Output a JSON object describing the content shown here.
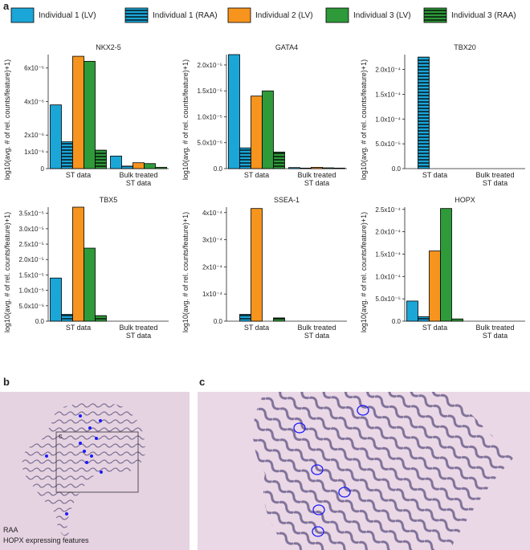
{
  "panel_label": "a",
  "legend": [
    {
      "name": "Individual 1 (LV)",
      "color": "#1ba6d8",
      "hatched": false
    },
    {
      "name": "Individual 1 (RAA)",
      "color": "#1ba6d8",
      "hatched": true
    },
    {
      "name": "Individual 2 (LV)",
      "color": "#f7941d",
      "hatched": false
    },
    {
      "name": "Individual 3 (LV)",
      "color": "#2e9a3a",
      "hatched": false
    },
    {
      "name": "Individual 3 (RAA)",
      "color": "#2e9a3a",
      "hatched": true
    }
  ],
  "chart_data": [
    {
      "type": "bar",
      "title": "NKX2-5",
      "ylabel": "log10(avg. # of rel. counts/feature)+1)",
      "categories": [
        "ST data",
        "Bulk treated ST data"
      ],
      "series": [
        {
          "values": [
            3.8e-06,
            7.5e-07
          ]
        },
        {
          "values": [
            1.6e-06,
            1.5e-07
          ]
        },
        {
          "values": [
            6.7e-06,
            3.5e-07
          ]
        },
        {
          "values": [
            6.4e-06,
            3e-07
          ]
        },
        {
          "values": [
            1.1e-06,
            8e-08
          ]
        }
      ],
      "ylim": [
        0,
        6.8e-06
      ],
      "yticks": [
        {
          "value": 0,
          "label": "0"
        },
        {
          "value": 1e-06,
          "label": "1x10⁻⁶"
        },
        {
          "value": 2e-06,
          "label": "2x10⁻⁶"
        },
        {
          "value": 4e-06,
          "label": "4x10⁻⁶"
        },
        {
          "value": 6e-06,
          "label": "6x10⁻⁶"
        }
      ]
    },
    {
      "type": "bar",
      "title": "GATA4",
      "ylabel": "log10(avg. # of rel. counts/feature)+1)",
      "categories": [
        "ST data",
        "Bulk treated ST data"
      ],
      "series": [
        {
          "values": [
            2.2e-05,
            2e-07
          ]
        },
        {
          "values": [
            4e-06,
            1e-07
          ]
        },
        {
          "values": [
            1.4e-05,
            2.5e-07
          ]
        },
        {
          "values": [
            1.5e-05,
            1.5e-07
          ]
        },
        {
          "values": [
            3.2e-06,
            1e-07
          ]
        }
      ],
      "ylim": [
        0,
        2.2e-05
      ],
      "yticks": [
        {
          "value": 0,
          "label": "0.0"
        },
        {
          "value": 5e-06,
          "label": "5.0x10⁻⁶"
        },
        {
          "value": 1e-05,
          "label": "1.0x10⁻⁵"
        },
        {
          "value": 1.5e-05,
          "label": "1.5x10⁻⁵"
        },
        {
          "value": 2e-05,
          "label": "2.0x10⁻⁵"
        }
      ]
    },
    {
      "type": "bar",
      "title": "TBX20",
      "ylabel": "log10(avg. # of rel. counts/feature)+1)",
      "categories": [
        "ST data",
        "Bulk treated ST data"
      ],
      "series": [
        {
          "values": [
            0,
            0
          ]
        },
        {
          "values": [
            0.000225,
            0
          ]
        },
        {
          "values": [
            0,
            0
          ]
        },
        {
          "values": [
            0,
            0
          ]
        },
        {
          "values": [
            0,
            0
          ]
        }
      ],
      "ylim": [
        0,
        0.00023
      ],
      "yticks": [
        {
          "value": 0,
          "label": "0.0"
        },
        {
          "value": 5e-05,
          "label": "5.0x10⁻⁵"
        },
        {
          "value": 0.0001,
          "label": "1.0x10⁻⁴"
        },
        {
          "value": 0.00015,
          "label": "1.5x10⁻⁴"
        },
        {
          "value": 0.0002,
          "label": "2.0x10⁻⁴"
        }
      ]
    },
    {
      "type": "bar",
      "title": "TBX5",
      "ylabel": "log10(avg. # of rel. counts/feature)+1)",
      "categories": [
        "ST data",
        "Bulk treated ST data"
      ],
      "series": [
        {
          "values": [
            1.4e-05,
            0
          ]
        },
        {
          "values": [
            2.2e-06,
            0
          ]
        },
        {
          "values": [
            3.7e-05,
            0
          ]
        },
        {
          "values": [
            2.37e-05,
            0
          ]
        },
        {
          "values": [
            1.8e-06,
            0
          ]
        }
      ],
      "ylim": [
        0,
        3.7e-05
      ],
      "yticks": [
        {
          "value": 0,
          "label": "0.0"
        },
        {
          "value": 5e-06,
          "label": "5.0x10⁻⁶"
        },
        {
          "value": 1e-05,
          "label": "1.0x10⁻⁵"
        },
        {
          "value": 1.5e-05,
          "label": "1.5x10⁻⁵"
        },
        {
          "value": 2e-05,
          "label": "2.0x10⁻⁵"
        },
        {
          "value": 2.5e-05,
          "label": "2.5x10⁻⁵"
        },
        {
          "value": 3e-05,
          "label": "3.0x10⁻⁵"
        },
        {
          "value": 3.5e-05,
          "label": "3.5x10⁻⁵"
        }
      ]
    },
    {
      "type": "bar",
      "title": "SSEA-1",
      "ylabel": "log10(avg. # of rel. counts/feature)+1)",
      "categories": [
        "ST data",
        "Bulk treated ST data"
      ],
      "series": [
        {
          "values": [
            0,
            0
          ]
        },
        {
          "values": [
            2.5e-05,
            0
          ]
        },
        {
          "values": [
            0.000415,
            0
          ]
        },
        {
          "values": [
            0,
            0
          ]
        },
        {
          "values": [
            1.2e-05,
            0
          ]
        }
      ],
      "ylim": [
        0,
        0.00042
      ],
      "yticks": [
        {
          "value": 0,
          "label": "0.0"
        },
        {
          "value": 0.0001,
          "label": "1x10⁻⁴"
        },
        {
          "value": 0.0002,
          "label": "2x10⁻⁴"
        },
        {
          "value": 0.0003,
          "label": "3x10⁻⁴"
        },
        {
          "value": 0.0004,
          "label": "4x10⁻⁴"
        }
      ]
    },
    {
      "type": "bar",
      "title": "HOPX",
      "ylabel": "log10(avg. # of rel. counts/feature)+1)",
      "categories": [
        "ST data",
        "Bulk treated ST data"
      ],
      "series": [
        {
          "values": [
            4.5e-05,
            0
          ]
        },
        {
          "values": [
            1e-05,
            0
          ]
        },
        {
          "values": [
            0.000157,
            0
          ]
        },
        {
          "values": [
            0.000252,
            0
          ]
        },
        {
          "values": [
            5e-06,
            0
          ]
        }
      ],
      "ylim": [
        0,
        0.000255
      ],
      "yticks": [
        {
          "value": 0,
          "label": "0.0"
        },
        {
          "value": 5e-05,
          "label": "5.0x10⁻⁵"
        },
        {
          "value": 0.0001,
          "label": "1.0x10⁻⁴"
        },
        {
          "value": 0.00015,
          "label": "1.5x10⁻⁴"
        },
        {
          "value": 0.0002,
          "label": "2.0x10⁻⁴"
        },
        {
          "value": 0.00025,
          "label": "2.5x10⁻⁴"
        }
      ]
    }
  ],
  "panel_b": {
    "label": "b",
    "box_label": "c",
    "tissue_label": "RAA",
    "caption": "HOPX expressing features"
  },
  "panel_c": {
    "label": "c"
  }
}
